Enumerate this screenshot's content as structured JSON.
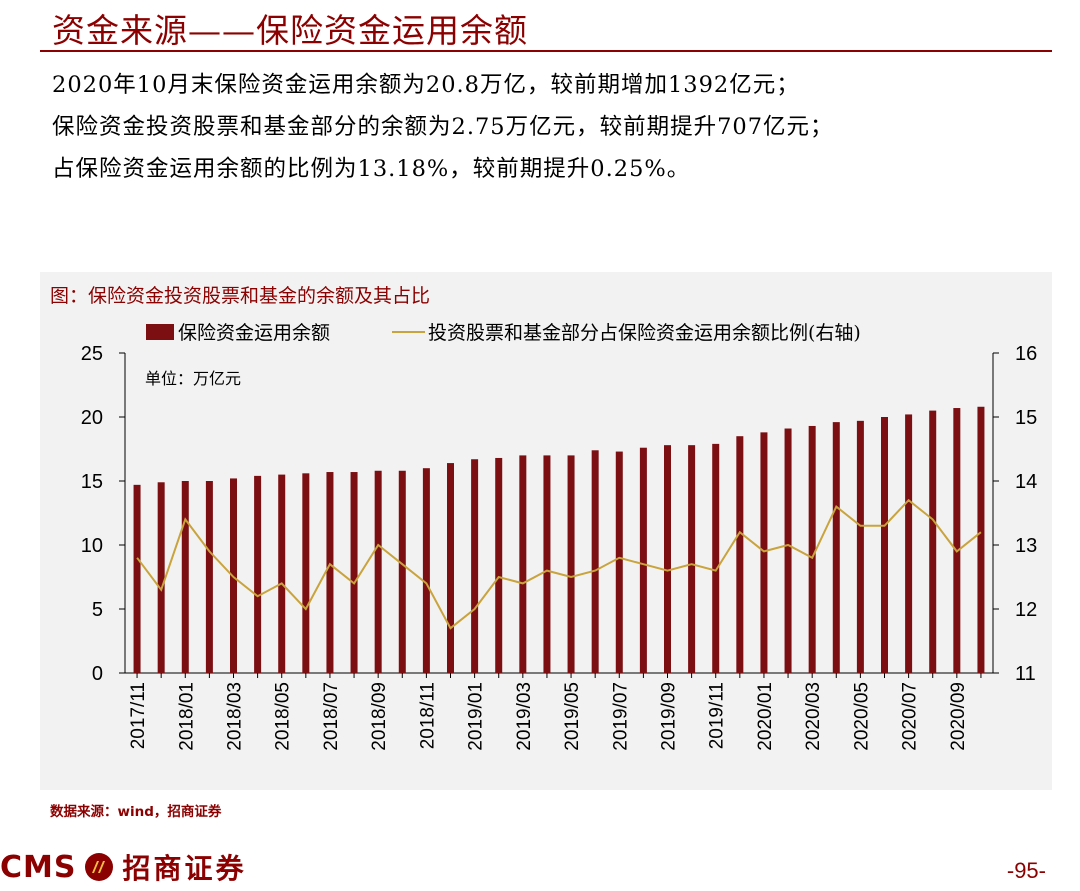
{
  "header": {
    "title": "资金来源——保险资金运用余额"
  },
  "summary": {
    "line1": "2020年10月末保险资金运用余额为20.8万亿，较前期增加1392亿元；",
    "line2": "保险资金投资股票和基金部分的余额为2.75万亿元，较前期提升707亿元；",
    "line3": "占保险资金运用余额的比例为13.18%，较前期提升0.25%。"
  },
  "chart_title": "图：保险资金投资股票和基金的余额及其占比",
  "chart_data": {
    "type": "bar+line",
    "unit_label": "单位：万亿元",
    "categories": [
      "2017/11",
      "2017/12",
      "2018/01",
      "2018/02",
      "2018/03",
      "2018/04",
      "2018/05",
      "2018/06",
      "2018/07",
      "2018/08",
      "2018/09",
      "2018/10",
      "2018/11",
      "2018/12",
      "2019/01",
      "2019/02",
      "2019/03",
      "2019/04",
      "2019/05",
      "2019/06",
      "2019/07",
      "2019/08",
      "2019/09",
      "2019/10",
      "2019/11",
      "2019/12",
      "2020/01",
      "2020/02",
      "2020/03",
      "2020/04",
      "2020/05",
      "2020/06",
      "2020/07",
      "2020/08",
      "2020/09",
      "2020/10"
    ],
    "tick_labels": [
      "2017/11",
      "2018/01",
      "2018/03",
      "2018/05",
      "2018/07",
      "2018/09",
      "2018/11",
      "2019/01",
      "2019/03",
      "2019/05",
      "2019/07",
      "2019/09",
      "2019/11",
      "2020/01",
      "2020/03",
      "2020/05",
      "2020/07",
      "2020/09"
    ],
    "series": [
      {
        "name": "保险资金运用余额",
        "type": "bar",
        "axis": "left",
        "color": "#7b0f12",
        "values": [
          14.7,
          14.9,
          15.0,
          15.0,
          15.2,
          15.4,
          15.5,
          15.6,
          15.7,
          15.7,
          15.8,
          15.8,
          16.0,
          16.4,
          16.7,
          16.8,
          17.0,
          17.0,
          17.0,
          17.4,
          17.3,
          17.6,
          17.8,
          17.8,
          17.9,
          18.5,
          18.8,
          19.1,
          19.3,
          19.6,
          19.7,
          20.0,
          20.2,
          20.5,
          20.7,
          20.8
        ]
      },
      {
        "name": "投资股票和基金部分占保险资金运用余额比例(右轴)",
        "type": "line",
        "axis": "right",
        "color": "#c9a33c",
        "values": [
          12.8,
          12.3,
          13.4,
          12.9,
          12.5,
          12.2,
          12.4,
          12.0,
          12.7,
          12.4,
          13.0,
          12.7,
          12.4,
          11.7,
          12.0,
          12.5,
          12.4,
          12.6,
          12.5,
          12.6,
          12.8,
          12.7,
          12.6,
          12.7,
          12.6,
          13.2,
          12.9,
          13.0,
          12.8,
          13.6,
          13.3,
          13.3,
          13.7,
          13.4,
          12.9,
          13.2
        ]
      }
    ],
    "y_left": {
      "min": 0,
      "max": 25,
      "ticks": [
        0,
        5,
        10,
        15,
        20,
        25
      ]
    },
    "y_right": {
      "min": 11,
      "max": 16,
      "ticks": [
        11,
        12,
        13,
        14,
        15,
        16
      ]
    }
  },
  "source": "数据来源：wind，招商证券",
  "footer": {
    "logo_text": "CMS",
    "logo_cn": "招商证券",
    "page": "-95-"
  }
}
